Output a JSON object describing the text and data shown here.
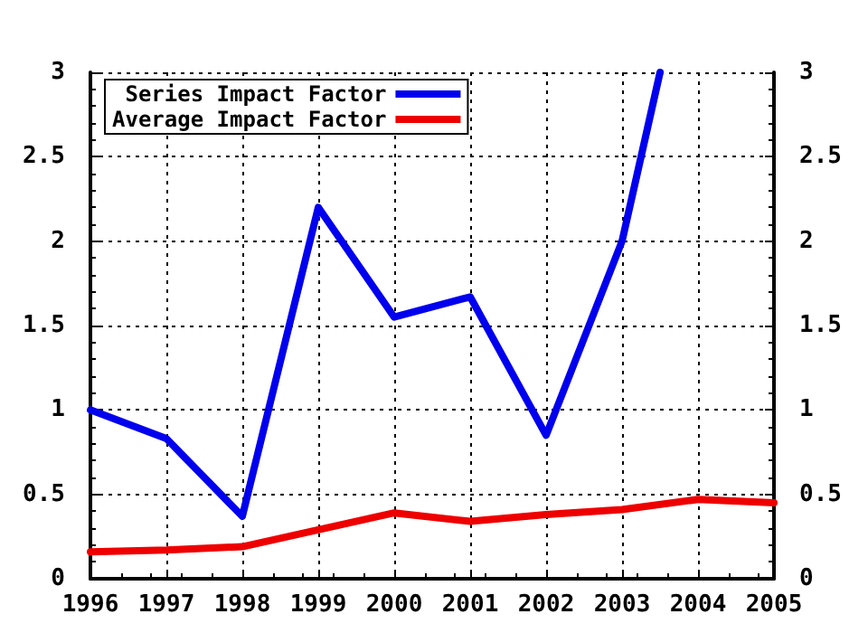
{
  "chart_data": {
    "type": "line",
    "x": [
      1996,
      1997,
      1998,
      1999,
      2000,
      2001,
      2002,
      2003,
      2004,
      2005
    ],
    "series": [
      {
        "name": "Series Impact Factor",
        "color": "#0000ee",
        "x": [
          1996,
          1997,
          1998,
          1999,
          2000,
          2001,
          2002,
          2003,
          2003.5
        ],
        "values": [
          1.0,
          0.83,
          0.37,
          2.2,
          1.55,
          1.67,
          0.85,
          2.0,
          3.0
        ]
      },
      {
        "name": "Average Impact Factor",
        "color": "#ee0000",
        "values": [
          0.16,
          0.17,
          0.19,
          0.29,
          0.39,
          0.34,
          0.38,
          0.41,
          0.47,
          0.45
        ]
      }
    ],
    "xlim": [
      1996,
      2005
    ],
    "xticks": [
      1996,
      1997,
      1998,
      1999,
      2000,
      2001,
      2002,
      2003,
      2004,
      2005
    ],
    "ylim": [
      0,
      3
    ],
    "yticks": [
      0,
      0.5,
      1,
      1.5,
      2,
      2.5,
      3
    ],
    "y2lim": [
      0,
      3
    ],
    "y2ticks": [
      0,
      0.5,
      1,
      1.5,
      2,
      2.5,
      3
    ],
    "grid": true,
    "legend": "top left",
    "marker": "none",
    "line_style": "solid"
  }
}
